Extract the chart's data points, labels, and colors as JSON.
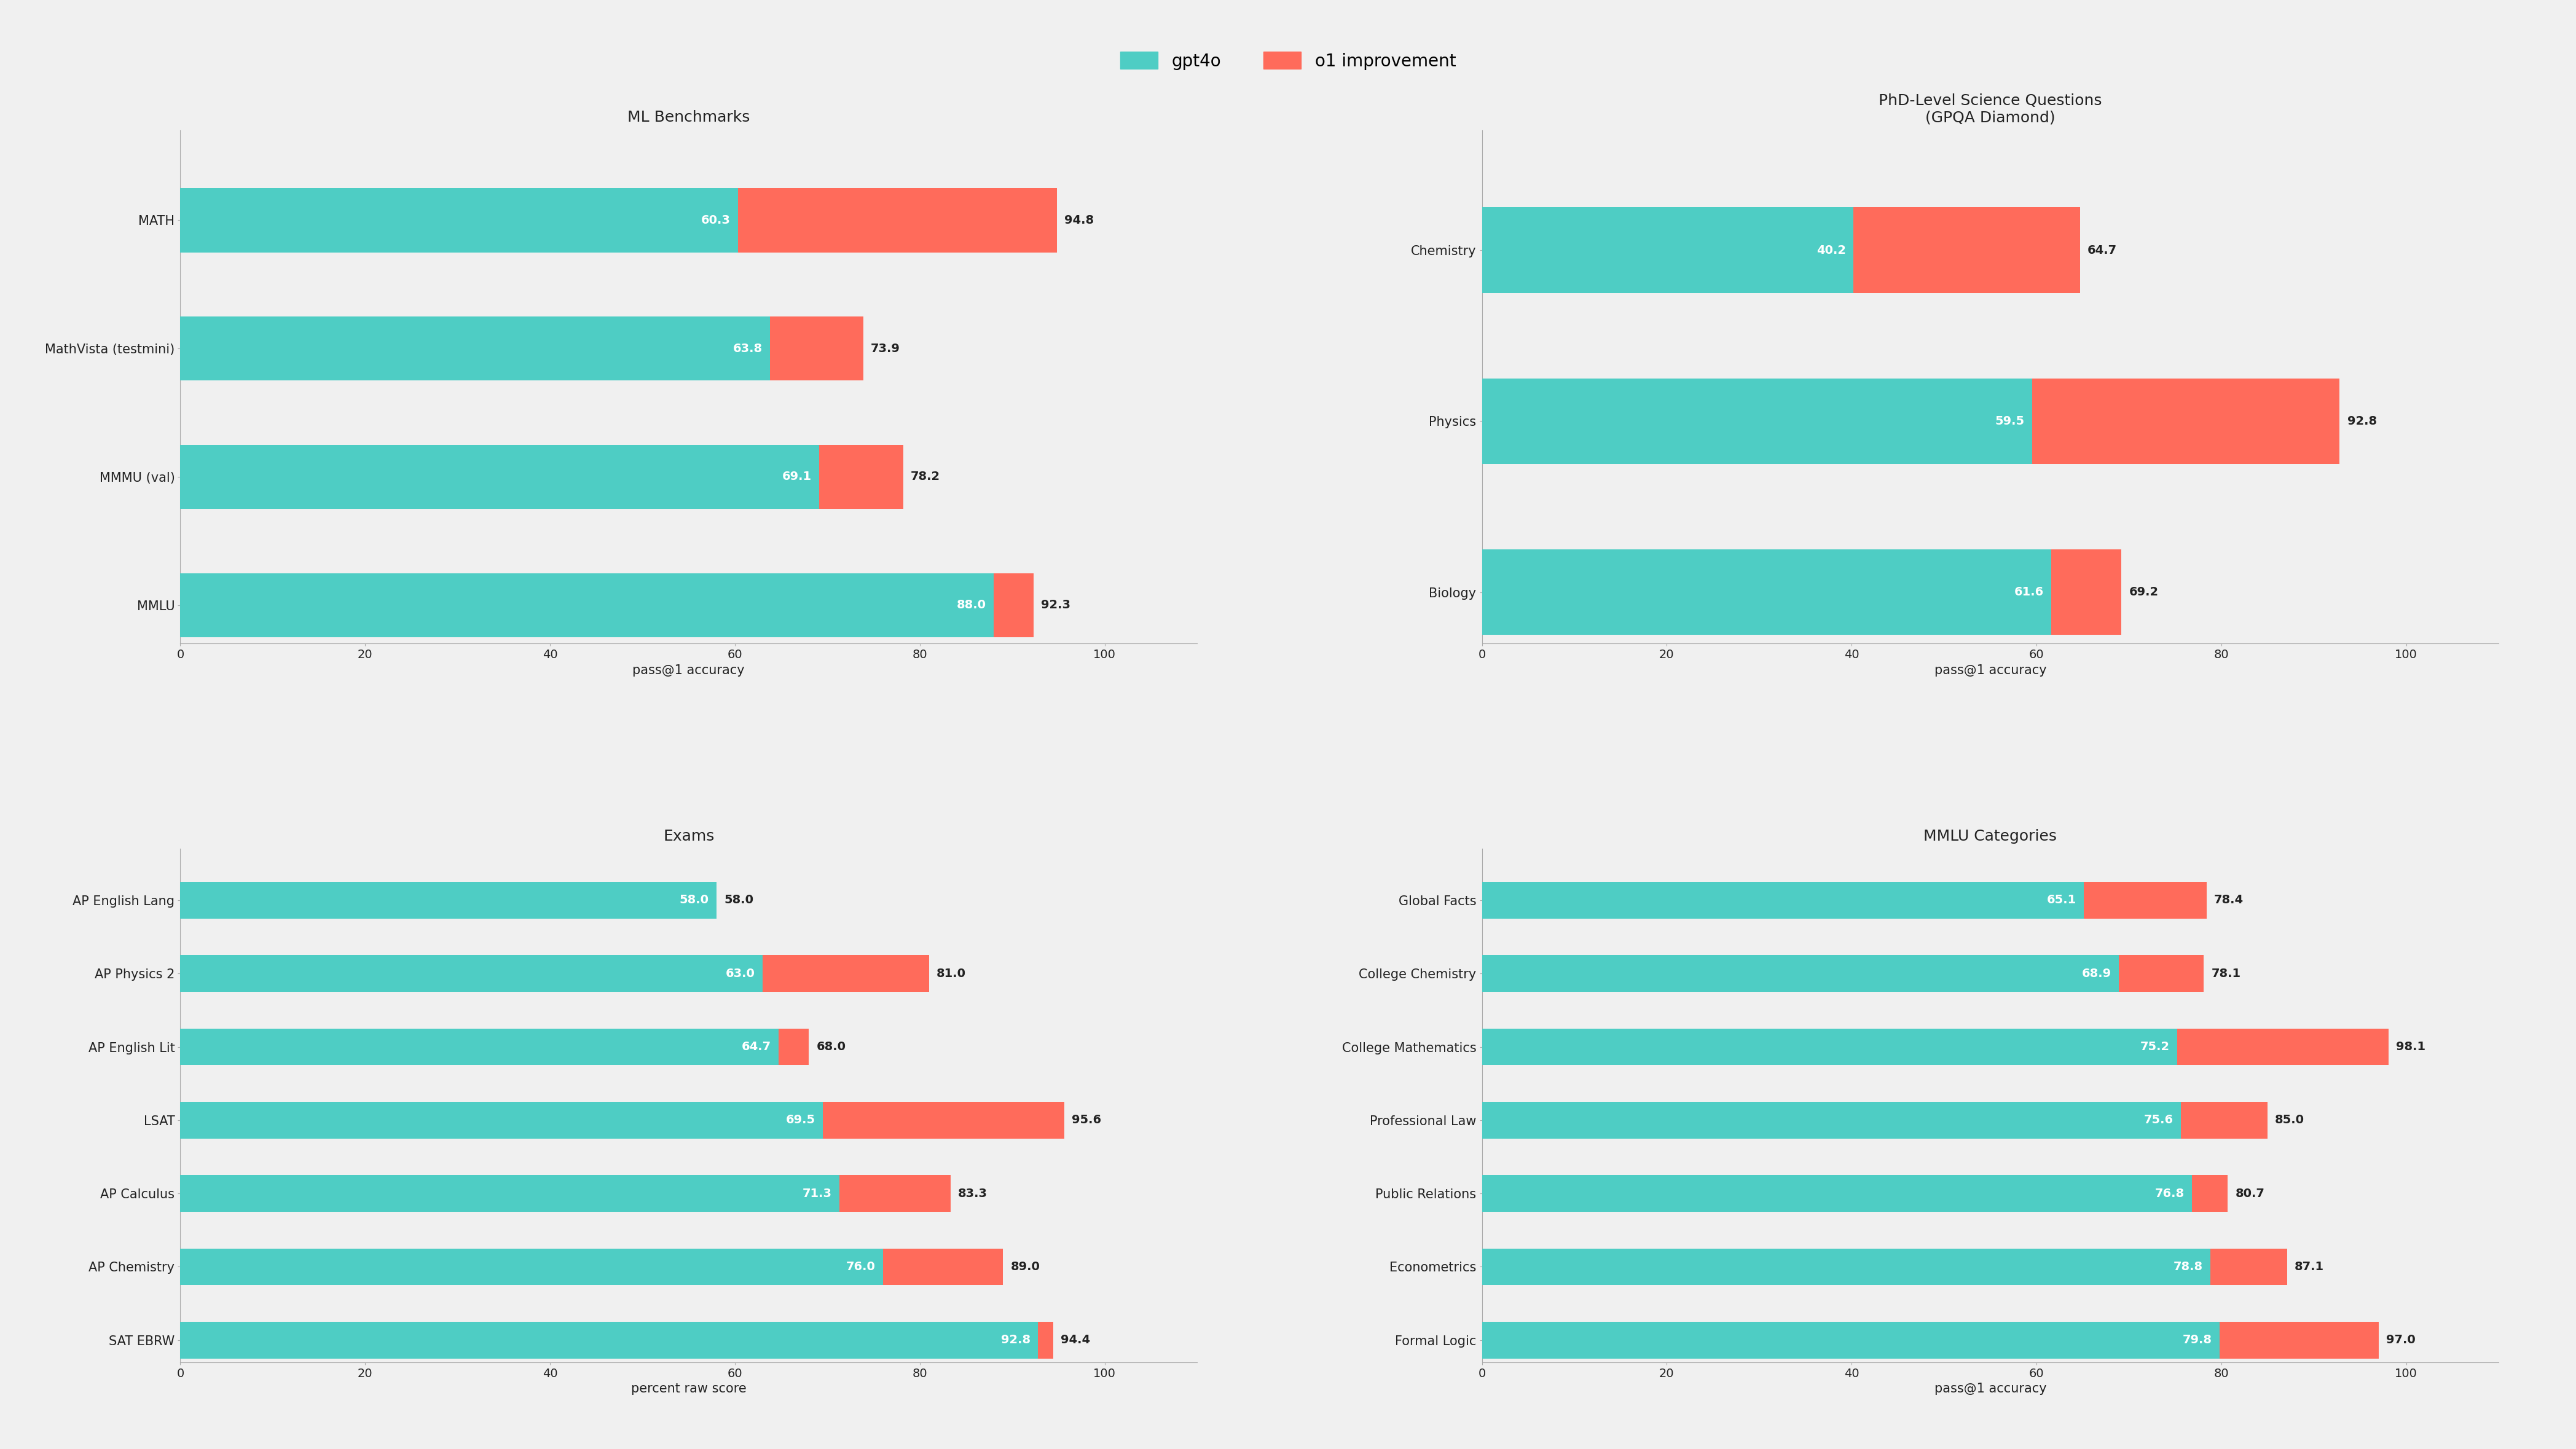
{
  "bg_color": "#f0f0f0",
  "gpt4o_color": "#4ecdc4",
  "o1_color": "#ff6b5b",
  "text_color": "#222222",
  "legend_labels": [
    "gpt4o",
    "o1 improvement"
  ],
  "subplots": {
    "ml_benchmarks": {
      "title": "ML Benchmarks",
      "xlabel": "pass@1 accuracy",
      "categories": [
        "MATH",
        "MathVista (testmini)",
        "MMMU (val)",
        "MMLU"
      ],
      "gpt4o": [
        60.3,
        63.8,
        69.1,
        88.0
      ],
      "o1": [
        94.8,
        73.9,
        78.2,
        92.3
      ]
    },
    "phd_science": {
      "title": "PhD-Level Science Questions\n(GPQA Diamond)",
      "xlabel": "pass@1 accuracy",
      "categories": [
        "Chemistry",
        "Physics",
        "Biology"
      ],
      "gpt4o": [
        40.2,
        59.5,
        61.6
      ],
      "o1": [
        64.7,
        92.8,
        69.2
      ]
    },
    "exams": {
      "title": "Exams",
      "xlabel": "percent raw score",
      "categories": [
        "AP English Lang",
        "AP Physics 2",
        "AP English Lit",
        "LSAT",
        "AP Calculus",
        "AP Chemistry",
        "SAT EBRW"
      ],
      "gpt4o": [
        58.0,
        63.0,
        64.7,
        69.5,
        71.3,
        76.0,
        92.8
      ],
      "o1": [
        58.0,
        81.0,
        68.0,
        95.6,
        83.3,
        89.0,
        94.4
      ]
    },
    "mmlu_categories": {
      "title": "MMLU Categories",
      "xlabel": "pass@1 accuracy",
      "categories": [
        "Global Facts",
        "College Chemistry",
        "College Mathematics",
        "Professional Law",
        "Public Relations",
        "Econometrics",
        "Formal Logic"
      ],
      "gpt4o": [
        65.1,
        68.9,
        75.2,
        75.6,
        76.8,
        78.8,
        79.8
      ],
      "o1": [
        78.4,
        78.1,
        98.1,
        85.0,
        80.7,
        87.1,
        97.0
      ]
    }
  },
  "subplot_order": [
    "ml_benchmarks",
    "phd_science",
    "exams",
    "mmlu_categories"
  ]
}
